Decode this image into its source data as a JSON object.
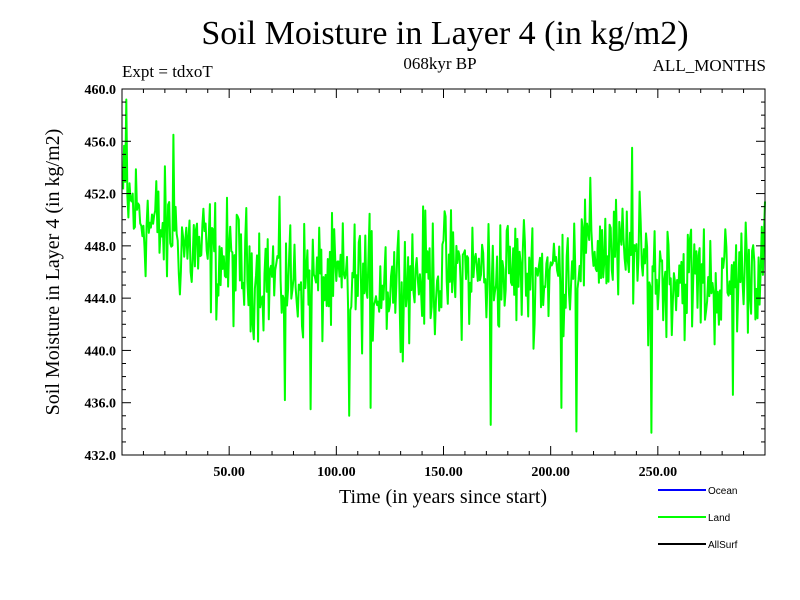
{
  "chart_data": {
    "type": "line",
    "title": "Soil Moisture in Layer 4 (in kg/m2)",
    "subtitle": "068kyr BP",
    "experiment_label": "Expt = tdxoT",
    "months_label": "ALL_MONTHS",
    "xlabel": "Time (in years since start)",
    "ylabel": "Soil Moisture in Layer 4 (in kg/m2)",
    "xlim": [
      0,
      300
    ],
    "ylim": [
      432.0,
      460.0
    ],
    "xticks": [
      50,
      100,
      150,
      200,
      250
    ],
    "xtick_labels": [
      "50.00",
      "100.00",
      "150.00",
      "200.00",
      "250.00"
    ],
    "yticks": [
      432,
      436,
      440,
      444,
      448,
      452,
      456,
      460
    ],
    "ytick_labels": [
      "432.0",
      "436.0",
      "440.0",
      "444.0",
      "448.0",
      "452.0",
      "456.0",
      "460.0"
    ],
    "grid": false,
    "legend_position": "bottom-right",
    "legend": [
      {
        "name": "Ocean",
        "color": "#0000ff"
      },
      {
        "name": "Land",
        "color": "#00ff00"
      },
      {
        "name": "AllSurf",
        "color": "#000000"
      }
    ],
    "series": [
      {
        "name": "Land",
        "color": "#00ff00",
        "x_start": 0.5,
        "x_step": 0.5,
        "mean_trend": [
          [
            0,
            452
          ],
          [
            10,
            450
          ],
          [
            30,
            448
          ],
          [
            60,
            446
          ],
          [
            100,
            445
          ],
          [
            150,
            446
          ],
          [
            200,
            446
          ],
          [
            220,
            448
          ],
          [
            250,
            446
          ],
          [
            280,
            445
          ],
          [
            300,
            447
          ]
        ],
        "amplitude": 3.5,
        "extremes": [
          {
            "x": 2,
            "y": 459.2
          },
          {
            "x": 24,
            "y": 456.5
          },
          {
            "x": 76,
            "y": 436.2
          },
          {
            "x": 88,
            "y": 435.5
          },
          {
            "x": 106,
            "y": 435.0
          },
          {
            "x": 116,
            "y": 435.6
          },
          {
            "x": 172,
            "y": 434.3
          },
          {
            "x": 205,
            "y": 435.6
          },
          {
            "x": 212,
            "y": 433.8
          },
          {
            "x": 238,
            "y": 455.5
          },
          {
            "x": 247,
            "y": 433.7
          },
          {
            "x": 285,
            "y": 436.6
          }
        ]
      }
    ]
  }
}
